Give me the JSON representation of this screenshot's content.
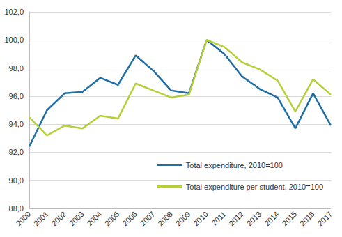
{
  "chart_data": {
    "type": "line",
    "categories": [
      "2000",
      "2001",
      "2002",
      "2003",
      "2004",
      "2005",
      "2006",
      "2007",
      "2008",
      "2009",
      "2010",
      "2011",
      "2012",
      "2013",
      "2014",
      "2015",
      "2016",
      "2017"
    ],
    "series": [
      {
        "name": "Total expenditure, 2010=100",
        "color": "#1f6fa6",
        "values": [
          92.4,
          95.0,
          96.2,
          96.3,
          97.3,
          96.8,
          98.9,
          97.8,
          96.4,
          96.2,
          100.0,
          99.0,
          97.4,
          96.5,
          95.9,
          93.7,
          96.2,
          93.9
        ]
      },
      {
        "name": "Total expenditure per student, 2010=100",
        "color": "#b4cf38",
        "values": [
          94.5,
          93.2,
          93.9,
          93.7,
          94.6,
          94.4,
          96.9,
          96.4,
          95.9,
          96.1,
          100.0,
          99.5,
          98.4,
          97.9,
          97.1,
          94.9,
          97.2,
          96.1
        ]
      }
    ],
    "ylim": [
      88,
      102
    ],
    "yticks": [
      {
        "value": 88,
        "label": "88,0"
      },
      {
        "value": 90,
        "label": "90,0"
      },
      {
        "value": 92,
        "label": "92,0"
      },
      {
        "value": 94,
        "label": "94,0"
      },
      {
        "value": 96,
        "label": "96,0"
      },
      {
        "value": 98,
        "label": "98,0"
      },
      {
        "value": 100,
        "label": "100,0"
      },
      {
        "value": 102,
        "label": "102,0"
      }
    ],
    "grid": true,
    "legend": "lower right"
  }
}
